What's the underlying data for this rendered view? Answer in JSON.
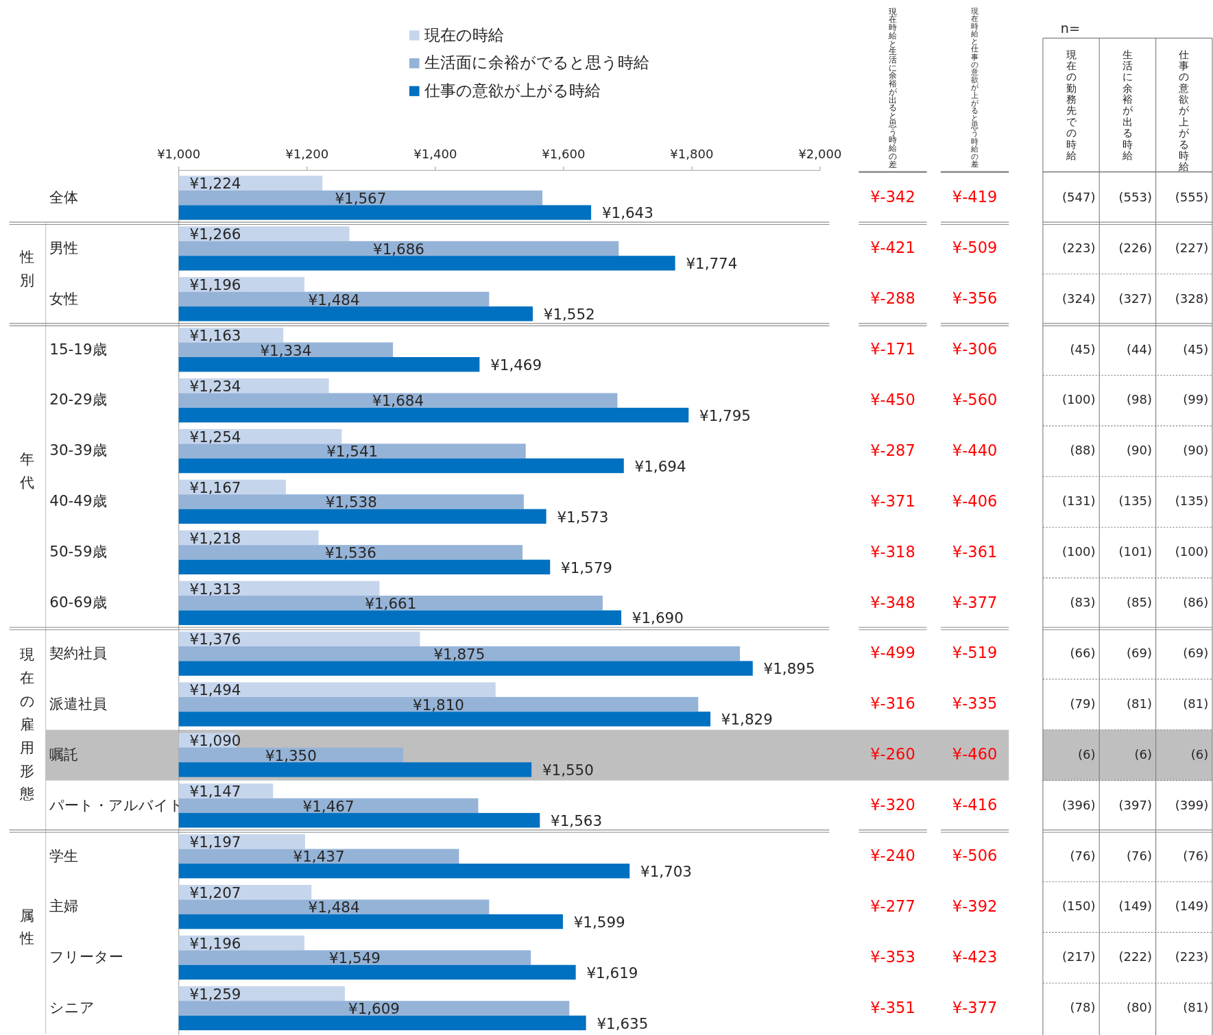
{
  "chart_data": [
    {
      "type": "bar",
      "orientation": "horizontal",
      "legend": "top",
      "categories": [
        "全体",
        "男性",
        "女性",
        "15-19歳",
        "20-29歳",
        "30-39歳",
        "40-49歳",
        "50-59歳",
        "60-69歳",
        "契約社員",
        "派遣社員",
        "嘱託",
        "パート・アルバイト",
        "学生",
        "主婦",
        "フリーター",
        "シニア"
      ],
      "series": [
        {
          "name": "現在の時給",
          "color": "#c5d5ec",
          "values": [
            1224,
            1266,
            1196,
            1163,
            1234,
            1254,
            1167,
            1218,
            1313,
            1376,
            1494,
            1090,
            1147,
            1197,
            1207,
            1196,
            1259
          ],
          "value_labels": [
            "¥1,224",
            "¥1,266",
            "¥1,196",
            "¥1,163",
            "¥1,234",
            "¥1,254",
            "¥1,167",
            "¥1,218",
            "¥1,313",
            "¥1,376",
            "¥1,494",
            "¥1,090",
            "¥1,147",
            "¥1,197",
            "¥1,207",
            "¥1,196",
            "¥1,259"
          ]
        },
        {
          "name": "生活面に余裕がでると思う時給",
          "color": "#95b3d7",
          "values": [
            1567,
            1686,
            1484,
            1334,
            1684,
            1541,
            1538,
            1536,
            1661,
            1875,
            1810,
            1350,
            1467,
            1437,
            1484,
            1549,
            1609
          ],
          "value_labels": [
            "¥1,567",
            "¥1,686",
            "¥1,484",
            "¥1,334",
            "¥1,684",
            "¥1,541",
            "¥1,538",
            "¥1,536",
            "¥1,661",
            "¥1,875",
            "¥1,810",
            "¥1,350",
            "¥1,467",
            "¥1,437",
            "¥1,484",
            "¥1,549",
            "¥1,609"
          ]
        },
        {
          "name": "仕事の意欲が上がる時給",
          "color": "#0070c0",
          "values": [
            1643,
            1774,
            1552,
            1469,
            1795,
            1694,
            1573,
            1579,
            1690,
            1895,
            1829,
            1550,
            1563,
            1703,
            1599,
            1619,
            1635
          ],
          "value_labels": [
            "¥1,643",
            "¥1,774",
            "¥1,552",
            "¥1,469",
            "¥1,795",
            "¥1,694",
            "¥1,573",
            "¥1,579",
            "¥1,690",
            "¥1,895",
            "¥1,829",
            "¥1,550",
            "¥1,563",
            "¥1,703",
            "¥1,599",
            "¥1,619",
            "¥1,635"
          ]
        }
      ],
      "xlim": [
        1000,
        2000
      ],
      "xticks": [
        {
          "value": 1000,
          "label": "¥1,000"
        },
        {
          "value": 1200,
          "label": "¥1,200"
        },
        {
          "value": 1400,
          "label": "¥1,400"
        },
        {
          "value": 1600,
          "label": "¥1,600"
        },
        {
          "value": 1800,
          "label": "¥1,800"
        },
        {
          "value": 2000,
          "label": "¥2,000"
        }
      ],
      "annotations": [
        "性別",
        "年代",
        "現在の雇用形態",
        "属性"
      ],
      "bands": [
        {
          "axis": "y",
          "from": "嘱託",
          "to": "嘱託",
          "color": "#bfbfbf"
        }
      ]
    },
    {
      "type": "other",
      "color": "#ff0000",
      "categories": [
        "現在時給と生活に余裕が出ると思う時給の差",
        "現在時給と仕事の意欲が上がると思う時給の差"
      ],
      "cell_labels": [
        [
          "¥-342",
          "¥-419"
        ],
        [
          "¥-421",
          "¥-509"
        ],
        [
          "¥-288",
          "¥-356"
        ],
        [
          "¥-171",
          "¥-306"
        ],
        [
          "¥-450",
          "¥-560"
        ],
        [
          "¥-287",
          "¥-440"
        ],
        [
          "¥-371",
          "¥-406"
        ],
        [
          "¥-318",
          "¥-361"
        ],
        [
          "¥-348",
          "¥-377"
        ],
        [
          "¥-499",
          "¥-519"
        ],
        [
          "¥-316",
          "¥-335"
        ],
        [
          "¥-260",
          "¥-460"
        ],
        [
          "¥-320",
          "¥-416"
        ],
        [
          "¥-240",
          "¥-506"
        ],
        [
          "¥-277",
          "¥-392"
        ],
        [
          "¥-353",
          "¥-423"
        ],
        [
          "¥-351",
          "¥-377"
        ]
      ]
    },
    {
      "type": "other",
      "color": "#262626",
      "title": "n=",
      "categories": [
        "現在の勤務先での時給",
        "生活に余裕が出る時給",
        "仕事の意欲が上がる時給"
      ],
      "cell_labels": [
        [
          "(547)",
          "(553)",
          "(555)"
        ],
        [
          "(223)",
          "(226)",
          "(227)"
        ],
        [
          "(324)",
          "(327)",
          "(328)"
        ],
        [
          "(45)",
          "(44)",
          "(45)"
        ],
        [
          "(100)",
          "(98)",
          "(99)"
        ],
        [
          "(88)",
          "(90)",
          "(90)"
        ],
        [
          "(131)",
          "(135)",
          "(135)"
        ],
        [
          "(100)",
          "(101)",
          "(100)"
        ],
        [
          "(83)",
          "(85)",
          "(86)"
        ],
        [
          "(66)",
          "(69)",
          "(69)"
        ],
        [
          "(79)",
          "(81)",
          "(81)"
        ],
        [
          "(6)",
          "(6)",
          "(6)"
        ],
        [
          "(396)",
          "(397)",
          "(399)"
        ],
        [
          "(76)",
          "(76)",
          "(76)"
        ],
        [
          "(150)",
          "(149)",
          "(149)"
        ],
        [
          "(217)",
          "(222)",
          "(223)"
        ],
        [
          "(78)",
          "(80)",
          "(81)"
        ]
      ]
    }
  ]
}
